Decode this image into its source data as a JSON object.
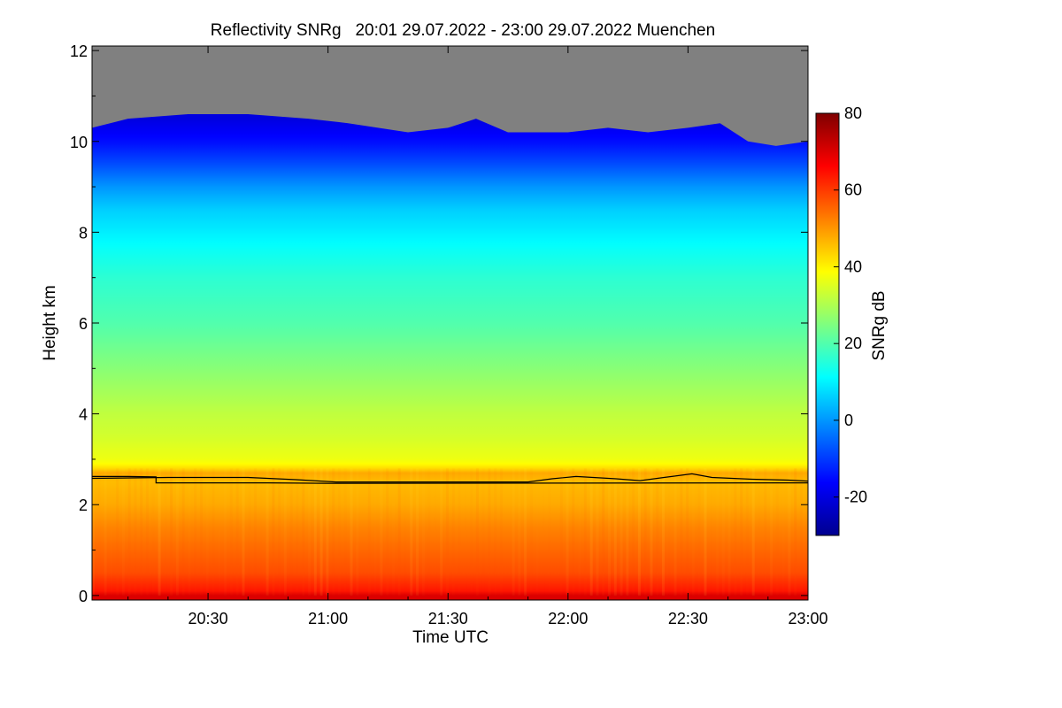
{
  "chart_data": {
    "type": "heatmap",
    "title": "Reflectivity SNRg   20:01 29.07.2022 - 23:00 29.07.2022 Muenchen",
    "xlabel": "Time UTC",
    "ylabel": "Height km",
    "colorbar_label": "SNRg dB",
    "x_range_minutes": [
      1201,
      1380
    ],
    "ylim": [
      -0.1,
      12.1
    ],
    "x_ticks": [
      {
        "minutes": 1230,
        "label": "20:30"
      },
      {
        "minutes": 1260,
        "label": "21:00"
      },
      {
        "minutes": 1290,
        "label": "21:30"
      },
      {
        "minutes": 1320,
        "label": "22:00"
      },
      {
        "minutes": 1350,
        "label": "22:30"
      },
      {
        "minutes": 1380,
        "label": "23:00"
      }
    ],
    "y_ticks": [
      0,
      2,
      4,
      6,
      8,
      10,
      12
    ],
    "colorbar_range": [
      -30,
      80
    ],
    "colorbar_ticks": [
      -20,
      0,
      20,
      40,
      60,
      80
    ],
    "colormap_stops": [
      "#00008f",
      "#0000ff",
      "#007fff",
      "#00ffff",
      "#7fff7f",
      "#ffff00",
      "#ff7f00",
      "#ff0000",
      "#7f0000"
    ],
    "nodata_color": "#808080",
    "profile": {
      "height_km": [
        0,
        0.1,
        0.5,
        1.0,
        1.5,
        2.0,
        2.5,
        2.7,
        2.85,
        3.0,
        3.5,
        4.0,
        5.0,
        6.0,
        7.0,
        7.5,
        8.5,
        9.0,
        9.5,
        10.0,
        10.5
      ],
      "snr_db": [
        70,
        64,
        58,
        55,
        52,
        48,
        46,
        48,
        40,
        37,
        34,
        32,
        26,
        20,
        16,
        13,
        6,
        0,
        -8,
        -15,
        -20
      ]
    },
    "echo_top_km": [
      {
        "minutes": 1201,
        "height": 10.3
      },
      {
        "minutes": 1210,
        "height": 10.5
      },
      {
        "minutes": 1225,
        "height": 10.6
      },
      {
        "minutes": 1240,
        "height": 10.6
      },
      {
        "minutes": 1255,
        "height": 10.5
      },
      {
        "minutes": 1265,
        "height": 10.4
      },
      {
        "minutes": 1280,
        "height": 10.2
      },
      {
        "minutes": 1290,
        "height": 10.3
      },
      {
        "minutes": 1297,
        "height": 10.5
      },
      {
        "minutes": 1305,
        "height": 10.2
      },
      {
        "minutes": 1320,
        "height": 10.2
      },
      {
        "minutes": 1330,
        "height": 10.3
      },
      {
        "minutes": 1340,
        "height": 10.2
      },
      {
        "minutes": 1350,
        "height": 10.3
      },
      {
        "minutes": 1358,
        "height": 10.4
      },
      {
        "minutes": 1365,
        "height": 10.0
      },
      {
        "minutes": 1372,
        "height": 9.9
      },
      {
        "minutes": 1380,
        "height": 10.0
      }
    ],
    "cloud_base_lines": [
      {
        "name": "",
        "points": [
          {
            "minutes": 1201,
            "height": 2.62
          },
          {
            "minutes": 1210,
            "height": 2.62
          },
          {
            "minutes": 1217,
            "height": 2.61
          },
          {
            "minutes": 1217,
            "height": 2.48
          },
          {
            "minutes": 1245,
            "height": 2.48
          },
          {
            "minutes": 1260,
            "height": 2.47
          },
          {
            "minutes": 1380,
            "height": 2.48
          }
        ]
      },
      {
        "name": "",
        "points": [
          {
            "minutes": 1201,
            "height": 2.58
          },
          {
            "minutes": 1220,
            "height": 2.6
          },
          {
            "minutes": 1240,
            "height": 2.6
          },
          {
            "minutes": 1252,
            "height": 2.55
          },
          {
            "minutes": 1262,
            "height": 2.5
          },
          {
            "minutes": 1290,
            "height": 2.5
          },
          {
            "minutes": 1310,
            "height": 2.5
          },
          {
            "minutes": 1316,
            "height": 2.57
          },
          {
            "minutes": 1322,
            "height": 2.62
          },
          {
            "minutes": 1332,
            "height": 2.57
          },
          {
            "minutes": 1338,
            "height": 2.53
          },
          {
            "minutes": 1344,
            "height": 2.6
          },
          {
            "minutes": 1351,
            "height": 2.68
          },
          {
            "minutes": 1356,
            "height": 2.6
          },
          {
            "minutes": 1366,
            "height": 2.56
          },
          {
            "minutes": 1375,
            "height": 2.54
          },
          {
            "minutes": 1380,
            "height": 2.52
          }
        ]
      }
    ]
  }
}
